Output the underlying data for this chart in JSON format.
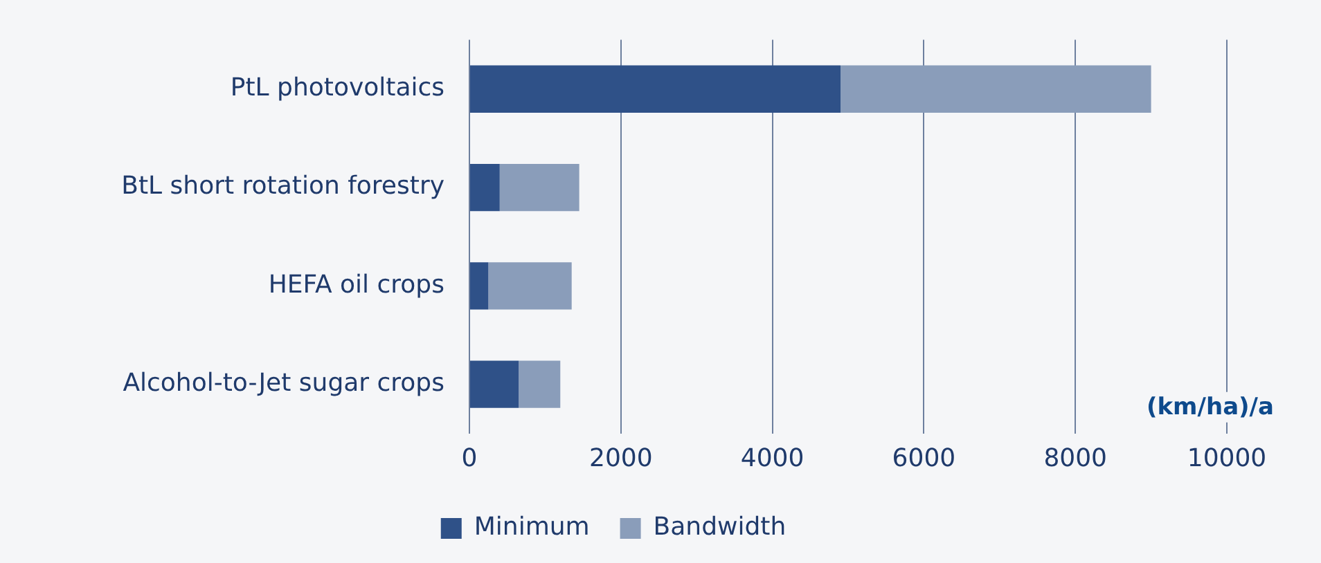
{
  "chart_data": {
    "type": "bar",
    "orientation": "horizontal",
    "stacked": true,
    "categories": [
      "PtL photovoltaics",
      "BtL short rotation forestry",
      "HEFA oil crops",
      "Alcohol-to-Jet sugar crops"
    ],
    "series": [
      {
        "name": "Minimum",
        "color": "#2f5188",
        "values": [
          4900,
          400,
          250,
          650
        ]
      },
      {
        "name": "Bandwidth",
        "color": "#8a9dba",
        "values": [
          4100,
          1050,
          1100,
          550
        ]
      }
    ],
    "xlabel": "(km/ha)/a",
    "xlim": [
      0,
      10000
    ],
    "xticks": [
      0,
      2000,
      4000,
      6000,
      8000,
      10000
    ],
    "grid": "x",
    "legend": "bottom"
  }
}
